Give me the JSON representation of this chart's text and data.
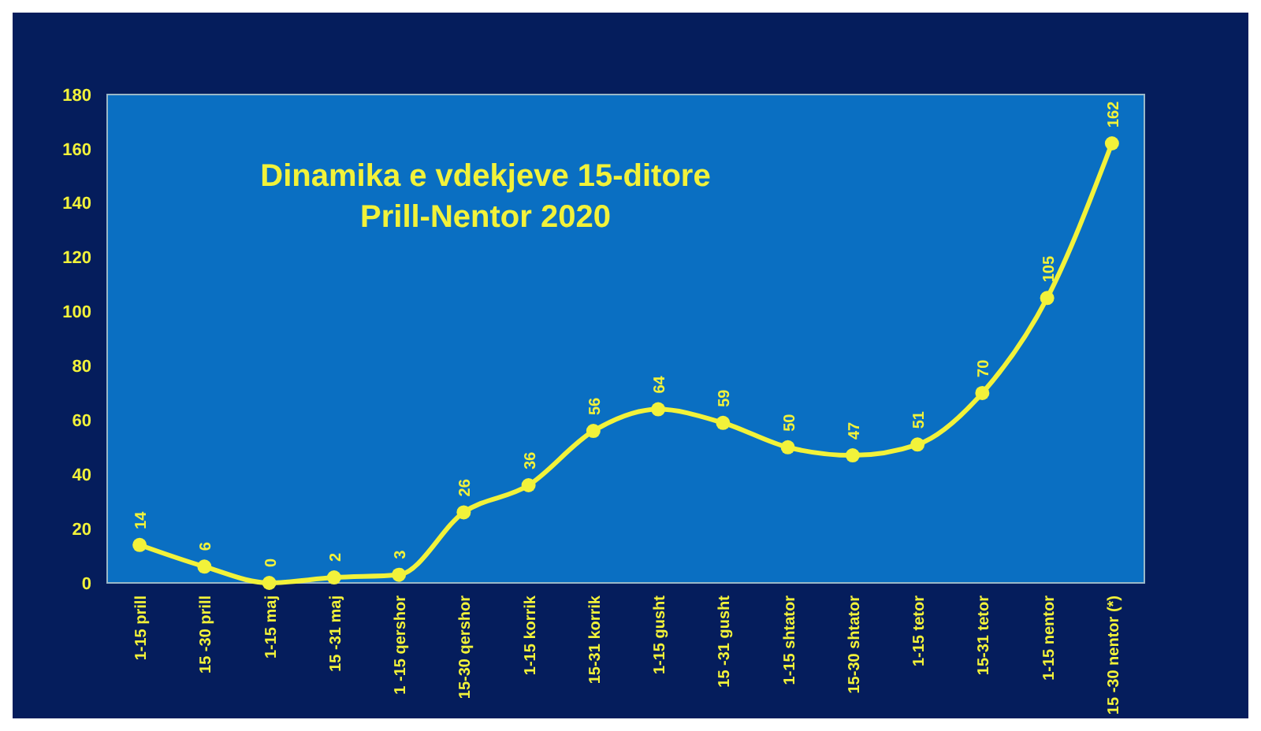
{
  "chart_data": {
    "type": "line",
    "title": "Dinamika e vdekjeve 15-ditore\nPrill-Nentor 2020",
    "categories": [
      "1-15 prill",
      "15 -30 prill",
      "1-15 maj",
      "15 -31 maj",
      "1 -15 qershor",
      "15-30 qershor",
      "1-15 korrik",
      "15-31 korrik",
      "1-15 gusht",
      "15 -31 gusht",
      "1-15 shtator",
      "15-30 shtator",
      "1-15 tetor",
      "15-31 tetor",
      "1-15 nentor",
      "15 -30 nentor (*)"
    ],
    "series": [
      {
        "color": "#f2f23a",
        "values": [
          14,
          6,
          0,
          2,
          3,
          26,
          36,
          56,
          64,
          59,
          50,
          47,
          51,
          70,
          105,
          162
        ]
      }
    ],
    "ylim": [
      0,
      180
    ],
    "yticks": [
      0,
      20,
      40,
      60,
      80,
      100,
      120,
      140,
      160,
      180
    ],
    "grid": false,
    "marker": "circle",
    "line_style": "solid",
    "data_labels": true
  }
}
